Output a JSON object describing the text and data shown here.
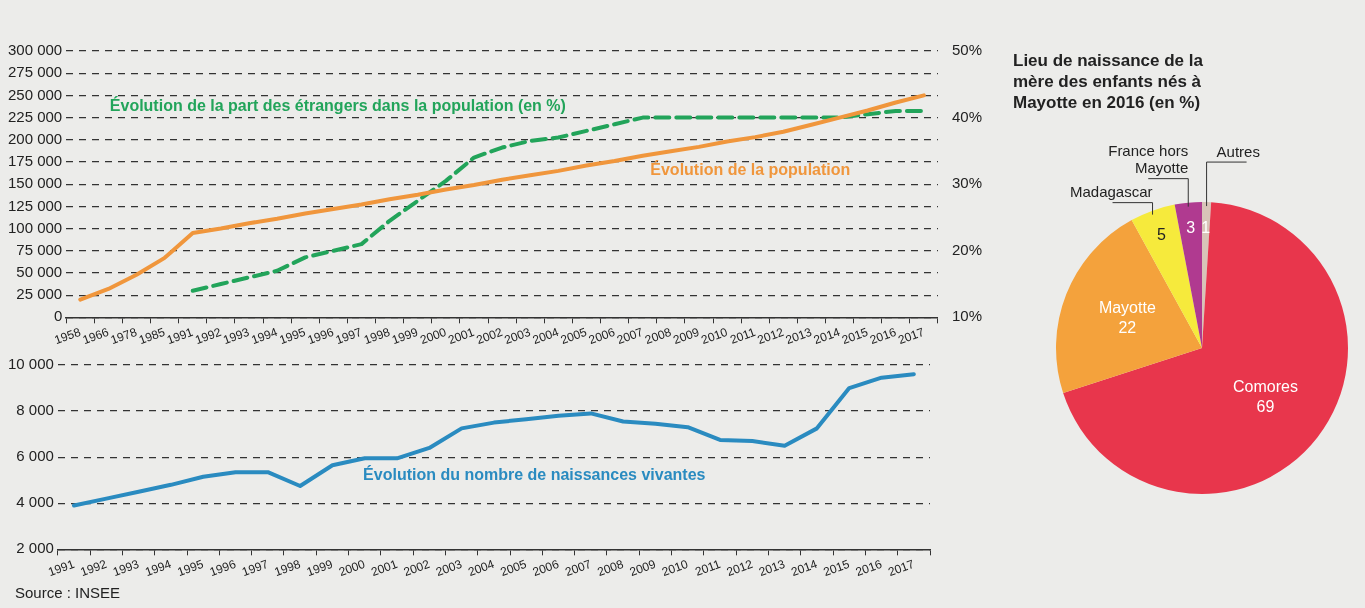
{
  "chart_data": [
    {
      "type": "line",
      "categories": [
        "1958",
        "1966",
        "1978",
        "1985",
        "1991",
        "1992",
        "1993",
        "1994",
        "1995",
        "1996",
        "1997",
        "1998",
        "1999",
        "2000",
        "2001",
        "2002",
        "2003",
        "2004",
        "2005",
        "2006",
        "2007",
        "2008",
        "2009",
        "2010",
        "2011",
        "2012",
        "2013",
        "2014",
        "2015",
        "2016",
        "2017"
      ],
      "series": [
        {
          "name": "Évolution de la population",
          "color": "#f0963c",
          "values": [
            20000,
            32000,
            48000,
            67000,
            95000,
            100000,
            106000,
            111000,
            117000,
            122000,
            127000,
            133000,
            138000,
            144000,
            149000,
            155000,
            160000,
            165000,
            171000,
            176000,
            182000,
            187000,
            192000,
            198000,
            203000,
            209000,
            217000,
            225000,
            233000,
            242000,
            250000
          ]
        },
        {
          "name": "Évolution de la part des étrangers dans la population (en %)",
          "color": "#22a45a",
          "axis": "y2",
          "line_style": "dashed",
          "values": [
            null,
            null,
            null,
            null,
            14,
            15,
            16,
            17,
            19,
            20,
            21,
            24.5,
            27.5,
            30.5,
            34,
            35.5,
            36.5,
            37,
            38,
            39,
            40,
            40,
            40,
            40,
            40,
            40,
            40,
            40,
            40.5,
            41,
            41
          ]
        }
      ],
      "ylim": [
        0,
        300000
      ],
      "yticks": [
        {
          "value": 0,
          "label": "0"
        },
        {
          "value": 25000,
          "label": "25 000"
        },
        {
          "value": 50000,
          "label": "50 000"
        },
        {
          "value": 75000,
          "label": "75 000"
        },
        {
          "value": 100000,
          "label": "100 000"
        },
        {
          "value": 125000,
          "label": "125 000"
        },
        {
          "value": 150000,
          "label": "150 000"
        },
        {
          "value": 175000,
          "label": "175 000"
        },
        {
          "value": 200000,
          "label": "200 000"
        },
        {
          "value": 225000,
          "label": "225 000"
        },
        {
          "value": 250000,
          "label": "250 000"
        },
        {
          "value": 275000,
          "label": "275 000"
        },
        {
          "value": 300000,
          "label": "300 000"
        }
      ],
      "y2lim": [
        10,
        50
      ],
      "y2ticks": [
        {
          "value": 10,
          "label": "10%"
        },
        {
          "value": 20,
          "label": "20%"
        },
        {
          "value": 30,
          "label": "30%"
        },
        {
          "value": 40,
          "label": "40%"
        },
        {
          "value": 50,
          "label": "50%"
        }
      ],
      "grid": "y"
    },
    {
      "type": "line",
      "categories": [
        "1991",
        "1992",
        "1993",
        "1994",
        "1995",
        "1996",
        "1997",
        "1998",
        "1999",
        "2000",
        "2001",
        "2002",
        "2003",
        "2004",
        "2005",
        "2006",
        "2007",
        "2008",
        "2009",
        "2010",
        "2011",
        "2012",
        "2013",
        "2014",
        "2015",
        "2016",
        "2017"
      ],
      "series": [
        {
          "name": "Évolution du nombre de naissances vivantes",
          "color": "#2a8bc0",
          "values": [
            3900,
            4200,
            4500,
            4800,
            5150,
            5350,
            5350,
            4750,
            5650,
            5950,
            5950,
            6400,
            7250,
            7500,
            7650,
            7800,
            7900,
            7550,
            7450,
            7300,
            6750,
            6700,
            6500,
            7250,
            9000,
            9450,
            9600
          ]
        }
      ],
      "ylim": [
        2000,
        10000
      ],
      "yticks": [
        {
          "value": 2000,
          "label": "2 000"
        },
        {
          "value": 4000,
          "label": "4 000"
        },
        {
          "value": 6000,
          "label": "6 000"
        },
        {
          "value": 8000,
          "label": "8 000"
        },
        {
          "value": 10000,
          "label": "10 000"
        }
      ],
      "grid": "y",
      "annotations": [
        "Source : INSEE"
      ]
    },
    {
      "type": "pie",
      "title": "Lieu de naissance de la mère des enfants nés à Mayotte en 2016 (en %)",
      "categories": [
        "Autres",
        "Comores",
        "Mayotte",
        "Madagascar",
        "France hors Mayotte"
      ],
      "values": [
        1,
        69,
        22,
        5,
        3
      ],
      "colors": [
        "#d8c4b8",
        "#e8364c",
        "#f4a23c",
        "#f6ea3c",
        "#b03a90"
      ],
      "data_labels": true
    }
  ]
}
